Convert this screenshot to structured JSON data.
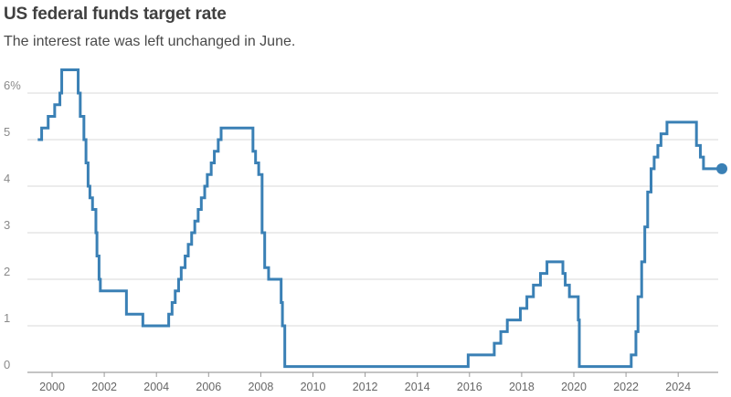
{
  "header": {
    "title": "US federal funds target rate",
    "subtitle": "The interest rate was left unchanged in June."
  },
  "colors": {
    "line": "#3a80b5",
    "grid": "#d9d9d9"
  },
  "chart_data": {
    "type": "line",
    "title": "US federal funds target rate",
    "subtitle": "The interest rate was left unchanged in June.",
    "xlabel": "",
    "ylabel": "",
    "xlim": [
      1999.5,
      2025.6
    ],
    "ylim": [
      0,
      6.6
    ],
    "y_ticks": [
      0,
      1,
      2,
      3,
      4,
      5,
      6
    ],
    "y_tick_labels": [
      "0",
      "1",
      "2",
      "3",
      "4",
      "5",
      "6%"
    ],
    "x_ticks": [
      2000,
      2002,
      2004,
      2006,
      2008,
      2010,
      2012,
      2014,
      2016,
      2018,
      2020,
      2022,
      2024
    ],
    "x_tick_labels": [
      "2000",
      "2002",
      "2004",
      "2006",
      "2008",
      "2010",
      "2012",
      "2014",
      "2016",
      "2018",
      "2020",
      "2022",
      "2024"
    ],
    "grid": true,
    "step": true,
    "series": [
      {
        "name": "Federal funds target rate",
        "x": [
          1999.45,
          1999.6,
          1999.85,
          2000.1,
          2000.3,
          2000.37,
          2001.0,
          2001.08,
          2001.22,
          2001.3,
          2001.38,
          2001.45,
          2001.55,
          2001.68,
          2001.72,
          2001.8,
          2001.85,
          2001.9,
          2001.95,
          2002.85,
          2003.48,
          2004.47,
          2004.6,
          2004.72,
          2004.85,
          2004.95,
          2005.1,
          2005.22,
          2005.35,
          2005.47,
          2005.6,
          2005.72,
          2005.85,
          2005.95,
          2006.1,
          2006.22,
          2006.37,
          2006.48,
          2007.7,
          2007.8,
          2007.92,
          2008.05,
          2008.15,
          2008.3,
          2008.78,
          2008.83,
          2008.92,
          2015.95,
          2016.95,
          2017.2,
          2017.45,
          2017.95,
          2018.2,
          2018.45,
          2018.72,
          2018.97,
          2019.58,
          2019.67,
          2019.83,
          2020.17,
          2020.21,
          2022.2,
          2022.38,
          2022.46,
          2022.6,
          2022.72,
          2022.83,
          2022.96,
          2023.08,
          2023.22,
          2023.34,
          2023.57,
          2024.7,
          2024.85,
          2024.97,
          2025.5
        ],
        "values": [
          5.0,
          5.25,
          5.5,
          5.75,
          6.0,
          6.5,
          6.0,
          5.5,
          5.0,
          4.5,
          4.0,
          3.75,
          3.5,
          3.0,
          2.5,
          2.0,
          1.75,
          1.75,
          1.75,
          1.25,
          1.0,
          1.25,
          1.5,
          1.75,
          2.0,
          2.25,
          2.5,
          2.75,
          3.0,
          3.25,
          3.5,
          3.75,
          4.0,
          4.25,
          4.5,
          4.75,
          5.0,
          5.25,
          4.75,
          4.5,
          4.25,
          3.0,
          2.25,
          2.0,
          1.5,
          1.0,
          0.125,
          0.375,
          0.625,
          0.875,
          1.125,
          1.375,
          1.625,
          1.875,
          2.125,
          2.375,
          2.125,
          1.875,
          1.625,
          1.125,
          0.125,
          0.375,
          0.875,
          1.625,
          2.375,
          3.125,
          3.875,
          4.375,
          4.625,
          4.875,
          5.125,
          5.375,
          4.875,
          4.625,
          4.375,
          4.375
        ]
      }
    ]
  }
}
